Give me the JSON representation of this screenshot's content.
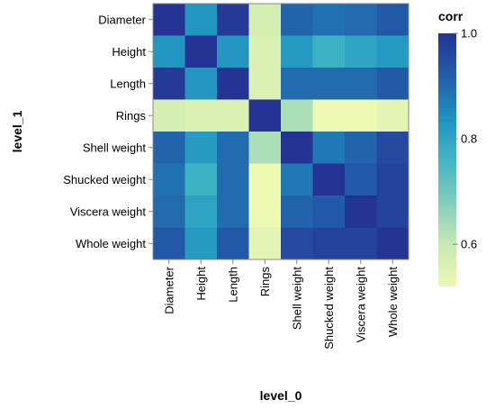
{
  "chart_data": {
    "type": "heatmap",
    "xlabel": "level_0",
    "ylabel": "level_1",
    "x_categories": [
      "Diameter",
      "Height",
      "Length",
      "Rings",
      "Shell weight",
      "Shucked weight",
      "Viscera weight",
      "Whole weight"
    ],
    "y_categories": [
      "Diameter",
      "Height",
      "Length",
      "Rings",
      "Shell weight",
      "Shucked weight",
      "Viscera weight",
      "Whole weight"
    ],
    "values": [
      [
        1.0,
        0.83,
        0.99,
        0.57,
        0.91,
        0.89,
        0.9,
        0.93
      ],
      [
        0.83,
        1.0,
        0.83,
        0.56,
        0.82,
        0.77,
        0.8,
        0.82
      ],
      [
        0.99,
        0.83,
        1.0,
        0.56,
        0.9,
        0.9,
        0.9,
        0.93
      ],
      [
        0.57,
        0.56,
        0.56,
        1.0,
        0.63,
        0.42,
        0.5,
        0.54
      ],
      [
        0.91,
        0.82,
        0.9,
        0.63,
        1.0,
        0.88,
        0.91,
        0.96
      ],
      [
        0.89,
        0.77,
        0.9,
        0.42,
        0.88,
        1.0,
        0.93,
        0.97
      ],
      [
        0.9,
        0.8,
        0.9,
        0.5,
        0.91,
        0.93,
        1.0,
        0.97
      ],
      [
        0.93,
        0.82,
        0.93,
        0.54,
        0.96,
        0.97,
        0.97,
        1.0
      ]
    ],
    "color_scale": {
      "scheme": "yellowgreenblue",
      "domain": [
        0.52,
        1.0
      ],
      "stops": [
        "#edf8b1",
        "#c7e9b4",
        "#7fcdbb",
        "#41b6c4",
        "#1d91c0",
        "#225ea8",
        "#253494"
      ]
    },
    "legend": {
      "title": "corr",
      "ticks": [
        1.0,
        0.8,
        0.6
      ],
      "tick_labels": [
        "1.0",
        "0.8",
        "0.6"
      ],
      "placement": "right"
    }
  }
}
